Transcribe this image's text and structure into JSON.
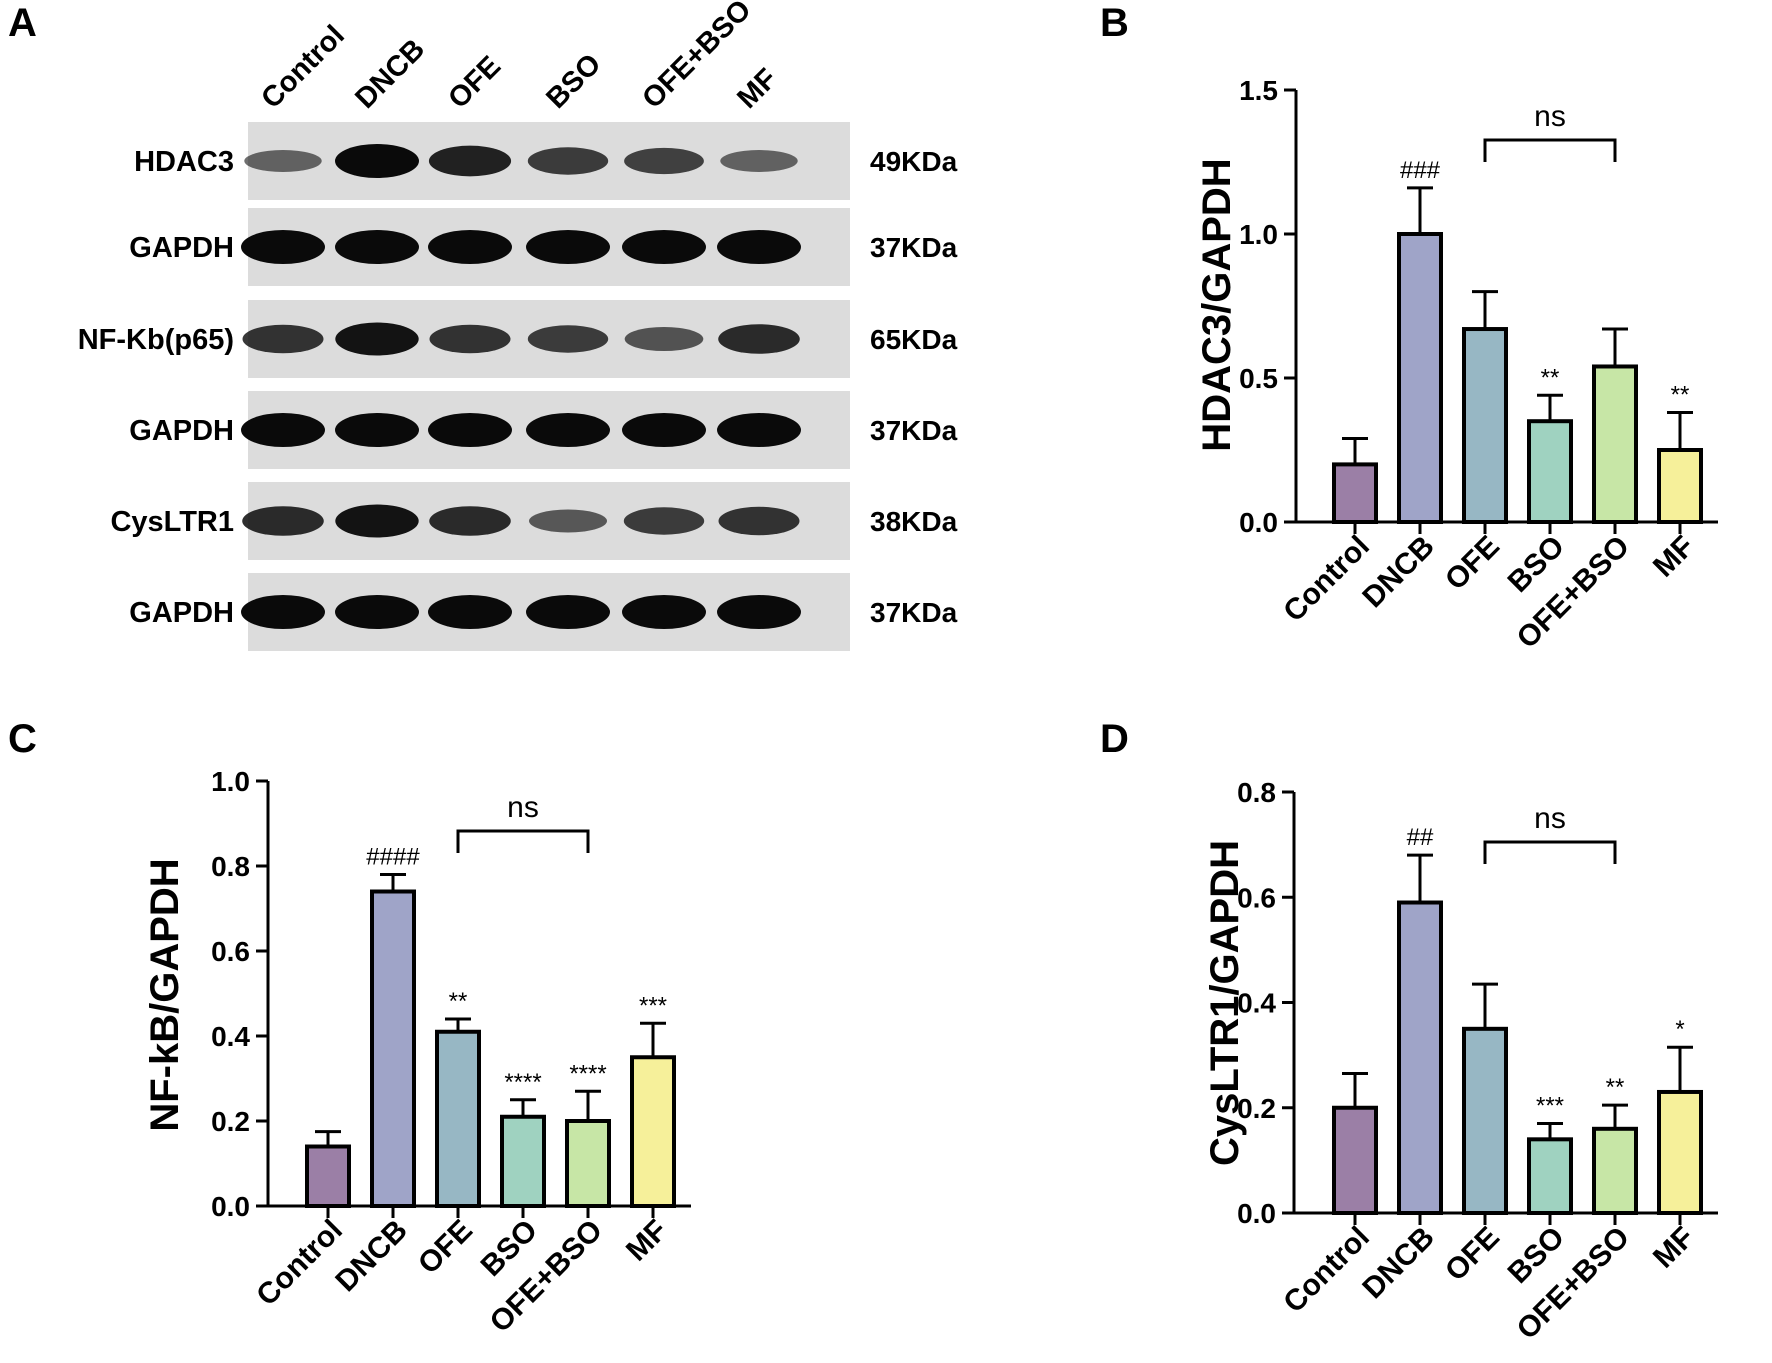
{
  "panels": {
    "a": "A",
    "b": "B",
    "c": "C",
    "d": "D"
  },
  "blot": {
    "lanes": [
      "Control",
      "DNCB",
      "OFE",
      "BSO",
      "OFE+BSO",
      "MF"
    ],
    "rows": [
      {
        "protein": "HDAC3",
        "size": "49KDa",
        "intensity": [
          0.45,
          1.0,
          0.85,
          0.7,
          0.65,
          0.45
        ]
      },
      {
        "protein": "GAPDH",
        "size": "37KDa",
        "intensity": [
          1.0,
          1.0,
          1.0,
          1.0,
          1.0,
          1.0
        ]
      },
      {
        "protein": "NF-Kb(p65)",
        "size": "65KDa",
        "intensity": [
          0.75,
          0.95,
          0.75,
          0.7,
          0.55,
          0.8
        ]
      },
      {
        "protein": "GAPDH",
        "size": "37KDa",
        "intensity": [
          1.0,
          1.0,
          1.0,
          1.0,
          1.0,
          1.0
        ]
      },
      {
        "protein": "CysLTR1",
        "size": "38KDa",
        "intensity": [
          0.8,
          0.95,
          0.8,
          0.5,
          0.7,
          0.75
        ]
      },
      {
        "protein": "GAPDH",
        "size": "37KDa",
        "intensity": [
          1.0,
          1.0,
          1.0,
          1.0,
          1.0,
          1.0
        ]
      }
    ]
  },
  "colors": {
    "bars": [
      "#9b7fa6",
      "#9fa4c8",
      "#97b7c4",
      "#9fd2c0",
      "#c7e6a6",
      "#f6f09a"
    ],
    "blot_background": "#dcdcdc",
    "band": "#0a0a0a"
  },
  "chart_data": [
    {
      "type": "bar",
      "panel": "B",
      "categories": [
        "Control",
        "DNCB",
        "OFE",
        "BSO",
        "OFE+BSO",
        "MF"
      ],
      "values": [
        0.2,
        1.0,
        0.67,
        0.35,
        0.54,
        0.25
      ],
      "errors": [
        0.09,
        0.16,
        0.13,
        0.09,
        0.13,
        0.13
      ],
      "annotations": [
        "",
        "###",
        "",
        "**",
        "",
        "**"
      ],
      "ylabel": "HDAC3/GAPDH",
      "ylim": [
        0,
        1.5
      ],
      "yticks": [
        "0.0",
        "0.5",
        "1.0",
        "1.5"
      ],
      "bracket": {
        "from": 2,
        "to": 4,
        "label": "ns"
      }
    },
    {
      "type": "bar",
      "panel": "C",
      "categories": [
        "Control",
        "DNCB",
        "OFE",
        "BSO",
        "OFE+BSO",
        "MF"
      ],
      "values": [
        0.14,
        0.74,
        0.41,
        0.21,
        0.2,
        0.35
      ],
      "errors": [
        0.035,
        0.04,
        0.03,
        0.04,
        0.07,
        0.08
      ],
      "annotations": [
        "",
        "####",
        "**",
        "****",
        "****",
        "***"
      ],
      "ylabel": "NF-kB/GAPDH",
      "ylim": [
        0,
        1.0
      ],
      "yticks": [
        "0.0",
        "0.2",
        "0.4",
        "0.6",
        "0.8",
        "1.0"
      ],
      "bracket": {
        "from": 2,
        "to": 4,
        "label": "ns"
      }
    },
    {
      "type": "bar",
      "panel": "D",
      "categories": [
        "Control",
        "DNCB",
        "OFE",
        "BSO",
        "OFE+BSO",
        "MF"
      ],
      "values": [
        0.2,
        0.59,
        0.35,
        0.14,
        0.16,
        0.23
      ],
      "errors": [
        0.065,
        0.09,
        0.085,
        0.03,
        0.045,
        0.085
      ],
      "annotations": [
        "",
        "##",
        "",
        "***",
        "**",
        "*"
      ],
      "ylabel": "CysLTR1/GAPDH",
      "ylim": [
        0,
        0.8
      ],
      "yticks": [
        "0.0",
        "0.2",
        "0.4",
        "0.6",
        "0.8"
      ],
      "bracket": {
        "from": 2,
        "to": 4,
        "label": "ns"
      }
    }
  ]
}
